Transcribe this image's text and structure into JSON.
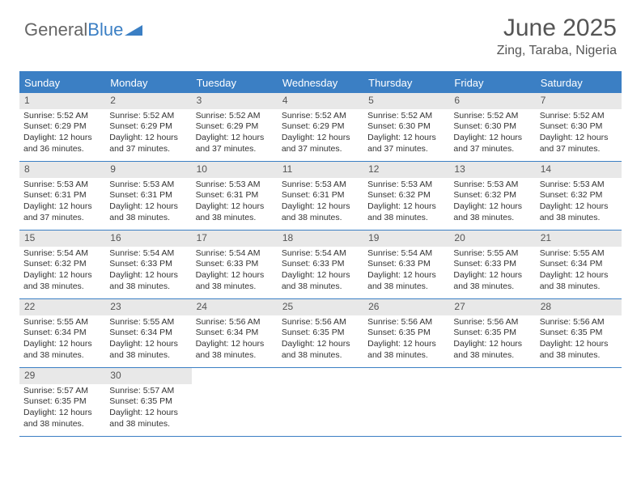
{
  "brand": {
    "part1": "General",
    "part2": "Blue"
  },
  "title": "June 2025",
  "location": "Zing, Taraba, Nigeria",
  "colors": {
    "accent": "#3b7fc4",
    "header_bg": "#3b7fc4",
    "daynum_bg": "#e8e8e8",
    "text": "#333333",
    "title_text": "#555555",
    "background": "#ffffff"
  },
  "dow": [
    "Sunday",
    "Monday",
    "Tuesday",
    "Wednesday",
    "Thursday",
    "Friday",
    "Saturday"
  ],
  "weeks": [
    [
      {
        "num": "1",
        "sunrise": "Sunrise: 5:52 AM",
        "sunset": "Sunset: 6:29 PM",
        "day": "Daylight: 12 hours and 36 minutes."
      },
      {
        "num": "2",
        "sunrise": "Sunrise: 5:52 AM",
        "sunset": "Sunset: 6:29 PM",
        "day": "Daylight: 12 hours and 37 minutes."
      },
      {
        "num": "3",
        "sunrise": "Sunrise: 5:52 AM",
        "sunset": "Sunset: 6:29 PM",
        "day": "Daylight: 12 hours and 37 minutes."
      },
      {
        "num": "4",
        "sunrise": "Sunrise: 5:52 AM",
        "sunset": "Sunset: 6:29 PM",
        "day": "Daylight: 12 hours and 37 minutes."
      },
      {
        "num": "5",
        "sunrise": "Sunrise: 5:52 AM",
        "sunset": "Sunset: 6:30 PM",
        "day": "Daylight: 12 hours and 37 minutes."
      },
      {
        "num": "6",
        "sunrise": "Sunrise: 5:52 AM",
        "sunset": "Sunset: 6:30 PM",
        "day": "Daylight: 12 hours and 37 minutes."
      },
      {
        "num": "7",
        "sunrise": "Sunrise: 5:52 AM",
        "sunset": "Sunset: 6:30 PM",
        "day": "Daylight: 12 hours and 37 minutes."
      }
    ],
    [
      {
        "num": "8",
        "sunrise": "Sunrise: 5:53 AM",
        "sunset": "Sunset: 6:31 PM",
        "day": "Daylight: 12 hours and 37 minutes."
      },
      {
        "num": "9",
        "sunrise": "Sunrise: 5:53 AM",
        "sunset": "Sunset: 6:31 PM",
        "day": "Daylight: 12 hours and 38 minutes."
      },
      {
        "num": "10",
        "sunrise": "Sunrise: 5:53 AM",
        "sunset": "Sunset: 6:31 PM",
        "day": "Daylight: 12 hours and 38 minutes."
      },
      {
        "num": "11",
        "sunrise": "Sunrise: 5:53 AM",
        "sunset": "Sunset: 6:31 PM",
        "day": "Daylight: 12 hours and 38 minutes."
      },
      {
        "num": "12",
        "sunrise": "Sunrise: 5:53 AM",
        "sunset": "Sunset: 6:32 PM",
        "day": "Daylight: 12 hours and 38 minutes."
      },
      {
        "num": "13",
        "sunrise": "Sunrise: 5:53 AM",
        "sunset": "Sunset: 6:32 PM",
        "day": "Daylight: 12 hours and 38 minutes."
      },
      {
        "num": "14",
        "sunrise": "Sunrise: 5:53 AM",
        "sunset": "Sunset: 6:32 PM",
        "day": "Daylight: 12 hours and 38 minutes."
      }
    ],
    [
      {
        "num": "15",
        "sunrise": "Sunrise: 5:54 AM",
        "sunset": "Sunset: 6:32 PM",
        "day": "Daylight: 12 hours and 38 minutes."
      },
      {
        "num": "16",
        "sunrise": "Sunrise: 5:54 AM",
        "sunset": "Sunset: 6:33 PM",
        "day": "Daylight: 12 hours and 38 minutes."
      },
      {
        "num": "17",
        "sunrise": "Sunrise: 5:54 AM",
        "sunset": "Sunset: 6:33 PM",
        "day": "Daylight: 12 hours and 38 minutes."
      },
      {
        "num": "18",
        "sunrise": "Sunrise: 5:54 AM",
        "sunset": "Sunset: 6:33 PM",
        "day": "Daylight: 12 hours and 38 minutes."
      },
      {
        "num": "19",
        "sunrise": "Sunrise: 5:54 AM",
        "sunset": "Sunset: 6:33 PM",
        "day": "Daylight: 12 hours and 38 minutes."
      },
      {
        "num": "20",
        "sunrise": "Sunrise: 5:55 AM",
        "sunset": "Sunset: 6:33 PM",
        "day": "Daylight: 12 hours and 38 minutes."
      },
      {
        "num": "21",
        "sunrise": "Sunrise: 5:55 AM",
        "sunset": "Sunset: 6:34 PM",
        "day": "Daylight: 12 hours and 38 minutes."
      }
    ],
    [
      {
        "num": "22",
        "sunrise": "Sunrise: 5:55 AM",
        "sunset": "Sunset: 6:34 PM",
        "day": "Daylight: 12 hours and 38 minutes."
      },
      {
        "num": "23",
        "sunrise": "Sunrise: 5:55 AM",
        "sunset": "Sunset: 6:34 PM",
        "day": "Daylight: 12 hours and 38 minutes."
      },
      {
        "num": "24",
        "sunrise": "Sunrise: 5:56 AM",
        "sunset": "Sunset: 6:34 PM",
        "day": "Daylight: 12 hours and 38 minutes."
      },
      {
        "num": "25",
        "sunrise": "Sunrise: 5:56 AM",
        "sunset": "Sunset: 6:35 PM",
        "day": "Daylight: 12 hours and 38 minutes."
      },
      {
        "num": "26",
        "sunrise": "Sunrise: 5:56 AM",
        "sunset": "Sunset: 6:35 PM",
        "day": "Daylight: 12 hours and 38 minutes."
      },
      {
        "num": "27",
        "sunrise": "Sunrise: 5:56 AM",
        "sunset": "Sunset: 6:35 PM",
        "day": "Daylight: 12 hours and 38 minutes."
      },
      {
        "num": "28",
        "sunrise": "Sunrise: 5:56 AM",
        "sunset": "Sunset: 6:35 PM",
        "day": "Daylight: 12 hours and 38 minutes."
      }
    ],
    [
      {
        "num": "29",
        "sunrise": "Sunrise: 5:57 AM",
        "sunset": "Sunset: 6:35 PM",
        "day": "Daylight: 12 hours and 38 minutes."
      },
      {
        "num": "30",
        "sunrise": "Sunrise: 5:57 AM",
        "sunset": "Sunset: 6:35 PM",
        "day": "Daylight: 12 hours and 38 minutes."
      },
      {
        "empty": true
      },
      {
        "empty": true
      },
      {
        "empty": true
      },
      {
        "empty": true
      },
      {
        "empty": true
      }
    ]
  ]
}
